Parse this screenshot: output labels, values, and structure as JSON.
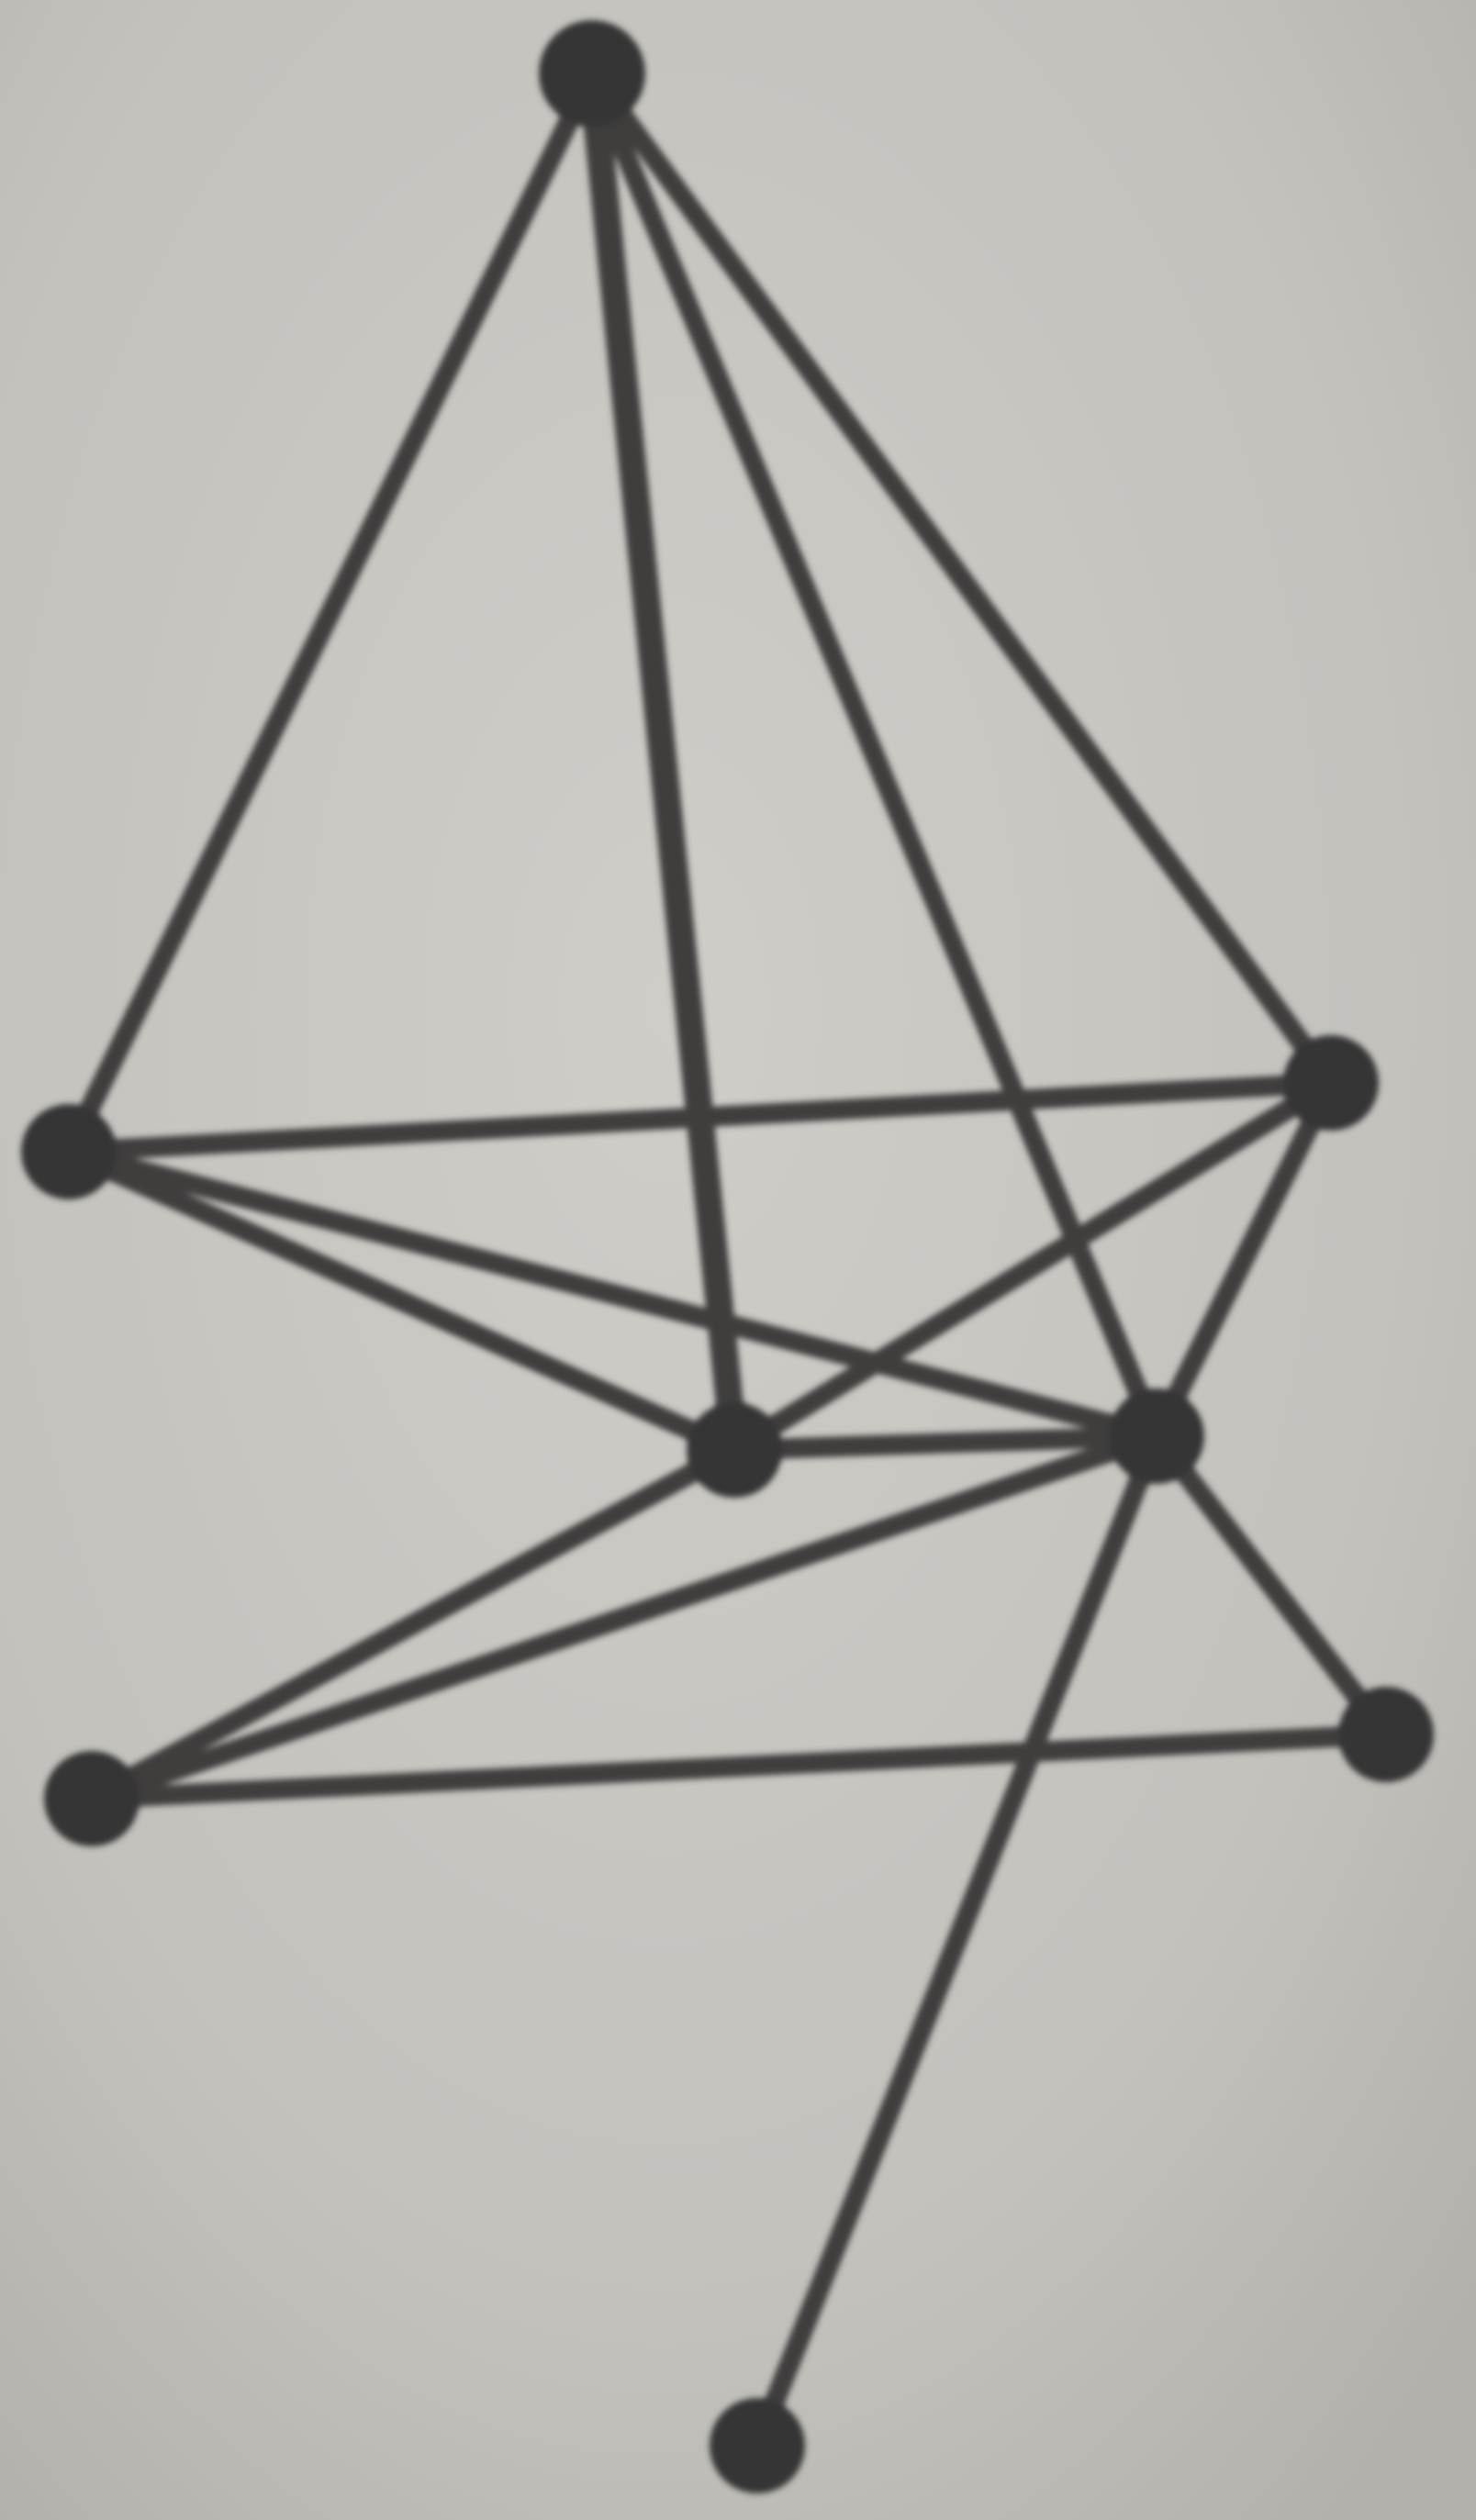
{
  "graph": {
    "nodes": [
      {
        "id": "top"
      },
      {
        "id": "left"
      },
      {
        "id": "right"
      },
      {
        "id": "center"
      },
      {
        "id": "mid-right"
      },
      {
        "id": "lower-left"
      },
      {
        "id": "lower-right"
      },
      {
        "id": "bottom"
      }
    ],
    "edges": [
      {
        "from": "top",
        "to": "left"
      },
      {
        "from": "top",
        "to": "center"
      },
      {
        "from": "top",
        "to": "mid-right"
      },
      {
        "from": "top",
        "to": "right"
      },
      {
        "from": "left",
        "to": "right"
      },
      {
        "from": "left",
        "to": "center"
      },
      {
        "from": "left",
        "to": "mid-right"
      },
      {
        "from": "right",
        "to": "center"
      },
      {
        "from": "right",
        "to": "mid-right"
      },
      {
        "from": "center",
        "to": "mid-right"
      },
      {
        "from": "center",
        "to": "lower-left"
      },
      {
        "from": "mid-right",
        "to": "lower-left"
      },
      {
        "from": "mid-right",
        "to": "lower-right"
      },
      {
        "from": "mid-right",
        "to": "bottom"
      },
      {
        "from": "lower-left",
        "to": "lower-right"
      }
    ]
  },
  "colors": {
    "paper": "#c4c2bd",
    "ink": "#3f3e3c",
    "node": "#363534"
  }
}
